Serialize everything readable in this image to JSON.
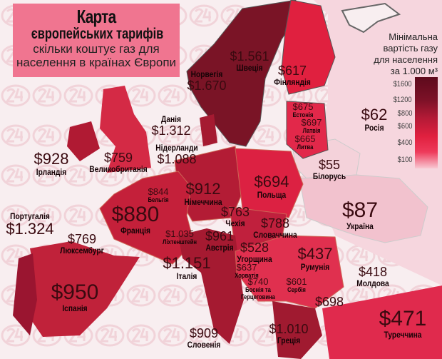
{
  "title": {
    "line1": "Карта",
    "line2": "європейських тарифів",
    "line3": "скільки коштує газ для",
    "line4": "населення в країнах Європи"
  },
  "watermark": "24",
  "legend": {
    "title": [
      "Мінімальна",
      "вартість газу",
      "для населення",
      "за 1.000 м³"
    ],
    "ticks": [
      "$1600",
      "$1200",
      "$800",
      "$600",
      "$400",
      "$100"
    ],
    "colors": [
      "#5e0a1c",
      "#b41a36",
      "#e0203f",
      "#f8c8d2"
    ]
  },
  "countries": [
    {
      "id": "norway",
      "name": "Норвегія",
      "price": "$1.670"
    },
    {
      "id": "sweden",
      "name": "Швеція",
      "price": "$1.561"
    },
    {
      "id": "finland",
      "name": "Фінляндія",
      "price": "$617"
    },
    {
      "id": "estonia",
      "name": "Естонія",
      "price": "$675"
    },
    {
      "id": "latvia",
      "name": "Латвія",
      "price": "$697"
    },
    {
      "id": "lithuania",
      "name": "Литва",
      "price": "$665"
    },
    {
      "id": "russia",
      "name": "Росія",
      "price": "$62"
    },
    {
      "id": "belarus",
      "name": "Білорусь",
      "price": "$55"
    },
    {
      "id": "denmark",
      "name": "Данія",
      "price": "$1.312"
    },
    {
      "id": "netherlands",
      "name": "Нідерланди",
      "price": "$1.088"
    },
    {
      "id": "ireland",
      "name": "Ірландія",
      "price": "$928"
    },
    {
      "id": "uk",
      "name": "Великобританія",
      "price": "$759"
    },
    {
      "id": "poland",
      "name": "Польща",
      "price": "$694"
    },
    {
      "id": "germany",
      "name": "Німеччина",
      "price": "$912"
    },
    {
      "id": "belgium",
      "name": "Бельгія",
      "price": "$844"
    },
    {
      "id": "france",
      "name": "Франція",
      "price": "$880"
    },
    {
      "id": "luxembourg",
      "name": "Люксембург",
      "price": "$769"
    },
    {
      "id": "portugal",
      "name": "Португалія",
      "price": "$1.324"
    },
    {
      "id": "liechtenstein",
      "name": "Ліхтенштейн",
      "price": "$1.035"
    },
    {
      "id": "czechia",
      "name": "Чехія",
      "price": "$763"
    },
    {
      "id": "slovakia",
      "name": "Словаччина",
      "price": "$788"
    },
    {
      "id": "austria",
      "name": "Австрія",
      "price": "$961"
    },
    {
      "id": "hungary",
      "name": "Угорщина",
      "price": "$528"
    },
    {
      "id": "romania",
      "name": "Румунія",
      "price": "$437"
    },
    {
      "id": "moldova",
      "name": "Молдова",
      "price": "$418"
    },
    {
      "id": "ukraine",
      "name": "Україна",
      "price": "$87"
    },
    {
      "id": "italy",
      "name": "Італія",
      "price": "$1.151"
    },
    {
      "id": "croatia",
      "name": "Хорватія",
      "price": "$637"
    },
    {
      "id": "bosnia",
      "name": "Боснія та Герцеговина",
      "price": "$740"
    },
    {
      "id": "serbia",
      "name": "Сербія",
      "price": "$601"
    },
    {
      "id": "bulgaria",
      "name": "",
      "price": "$698"
    },
    {
      "id": "greece",
      "name": "Греція",
      "price": "$1.010"
    },
    {
      "id": "turkey",
      "name": "Туреччина",
      "price": "$471"
    },
    {
      "id": "spain",
      "name": "Іспанія",
      "price": "$950"
    },
    {
      "id": "slovenia",
      "name": "Словенія",
      "price": "$909"
    }
  ]
}
